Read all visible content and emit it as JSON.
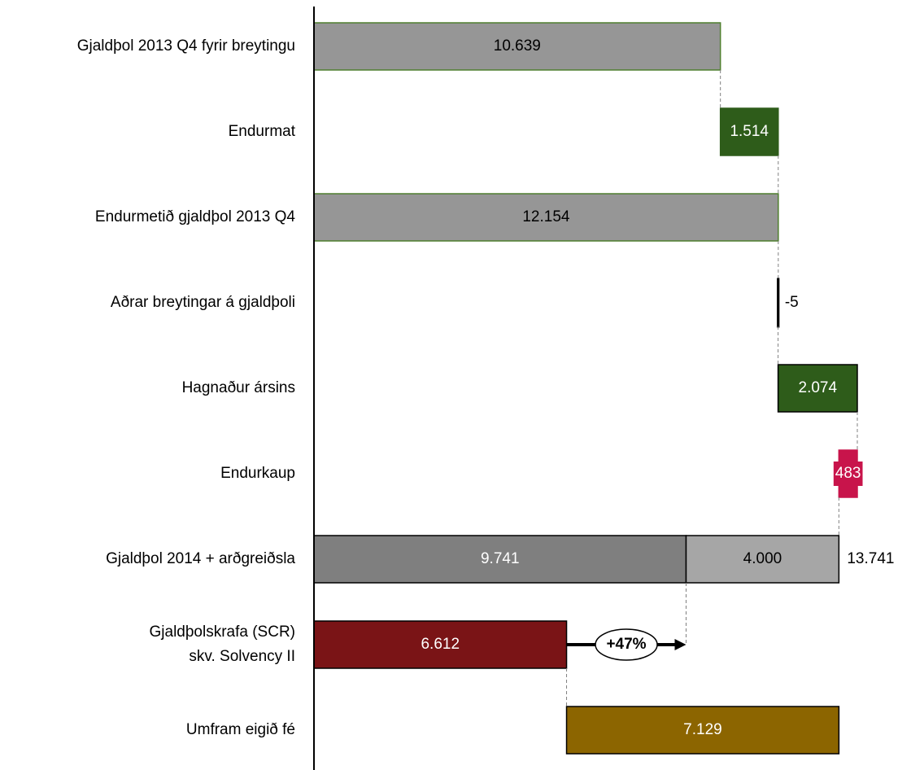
{
  "chart_data": {
    "type": "waterfall",
    "rows": [
      {
        "category": "Gjaldþol 2013 Q4 fyrir breytingu",
        "segments": [
          {
            "kind": "total",
            "value": 10639,
            "value_label": "10.639",
            "color": "#969696",
            "stroke": "#4f7f2f",
            "text_color": "#000000"
          }
        ]
      },
      {
        "category": "Endurmat",
        "segments": [
          {
            "kind": "delta",
            "value": 1514,
            "value_label": "1.514",
            "color": "#2e5c1a",
            "stroke": "#2e5c1a",
            "text_color": "#ffffff"
          }
        ]
      },
      {
        "category": "Endurmetið gjaldþol 2013 Q4",
        "segments": [
          {
            "kind": "total",
            "value": 12154,
            "value_label": "12.154",
            "color": "#969696",
            "stroke": "#4f7f2f",
            "text_color": "#000000"
          }
        ]
      },
      {
        "category": "Aðrar breytingar á gjaldþoli",
        "segments": [
          {
            "kind": "delta",
            "value": -5,
            "value_label": "-5",
            "color": "#000000",
            "stroke": "#000000",
            "text_color": "#000000",
            "label_position": "outside"
          }
        ]
      },
      {
        "category": "Hagnaður ársins",
        "segments": [
          {
            "kind": "delta",
            "value": 2074,
            "value_label": "2.074",
            "color": "#2e5c1a",
            "stroke": "#000000",
            "text_color": "#ffffff"
          }
        ]
      },
      {
        "category": "Endurkaup",
        "segments": [
          {
            "kind": "delta",
            "value": -483,
            "value_label": "483",
            "color": "#c8144b",
            "stroke": "#c8144b",
            "text_color": "#ffffff",
            "label_box": true
          }
        ]
      },
      {
        "category": "Gjaldþol 2014 + arðgreiðsla",
        "total": 13741,
        "total_label": "13.741",
        "segments": [
          {
            "kind": "total",
            "value": 9741,
            "value_label": "9.741",
            "color": "#7f7f7f",
            "stroke": "#000000",
            "text_color": "#ffffff"
          },
          {
            "kind": "total",
            "value": 4000,
            "value_label": "4.000",
            "color": "#a6a6a6",
            "stroke": "#000000",
            "text_color": "#000000"
          }
        ]
      },
      {
        "category": "Gjaldþolskrafa (SCR)\nskv. Solvency II",
        "segments": [
          {
            "kind": "total",
            "value": 6612,
            "value_label": "6.612",
            "color": "#7a1416",
            "stroke": "#000000",
            "text_color": "#ffffff"
          }
        ]
      },
      {
        "category": "Umfram eigið fé",
        "segments": [
          {
            "kind": "delta",
            "value": 7129,
            "value_label": "7.129",
            "color": "#8c6500",
            "stroke": "#000000",
            "text_color": "#ffffff"
          }
        ]
      }
    ],
    "annotation": "+47%"
  }
}
